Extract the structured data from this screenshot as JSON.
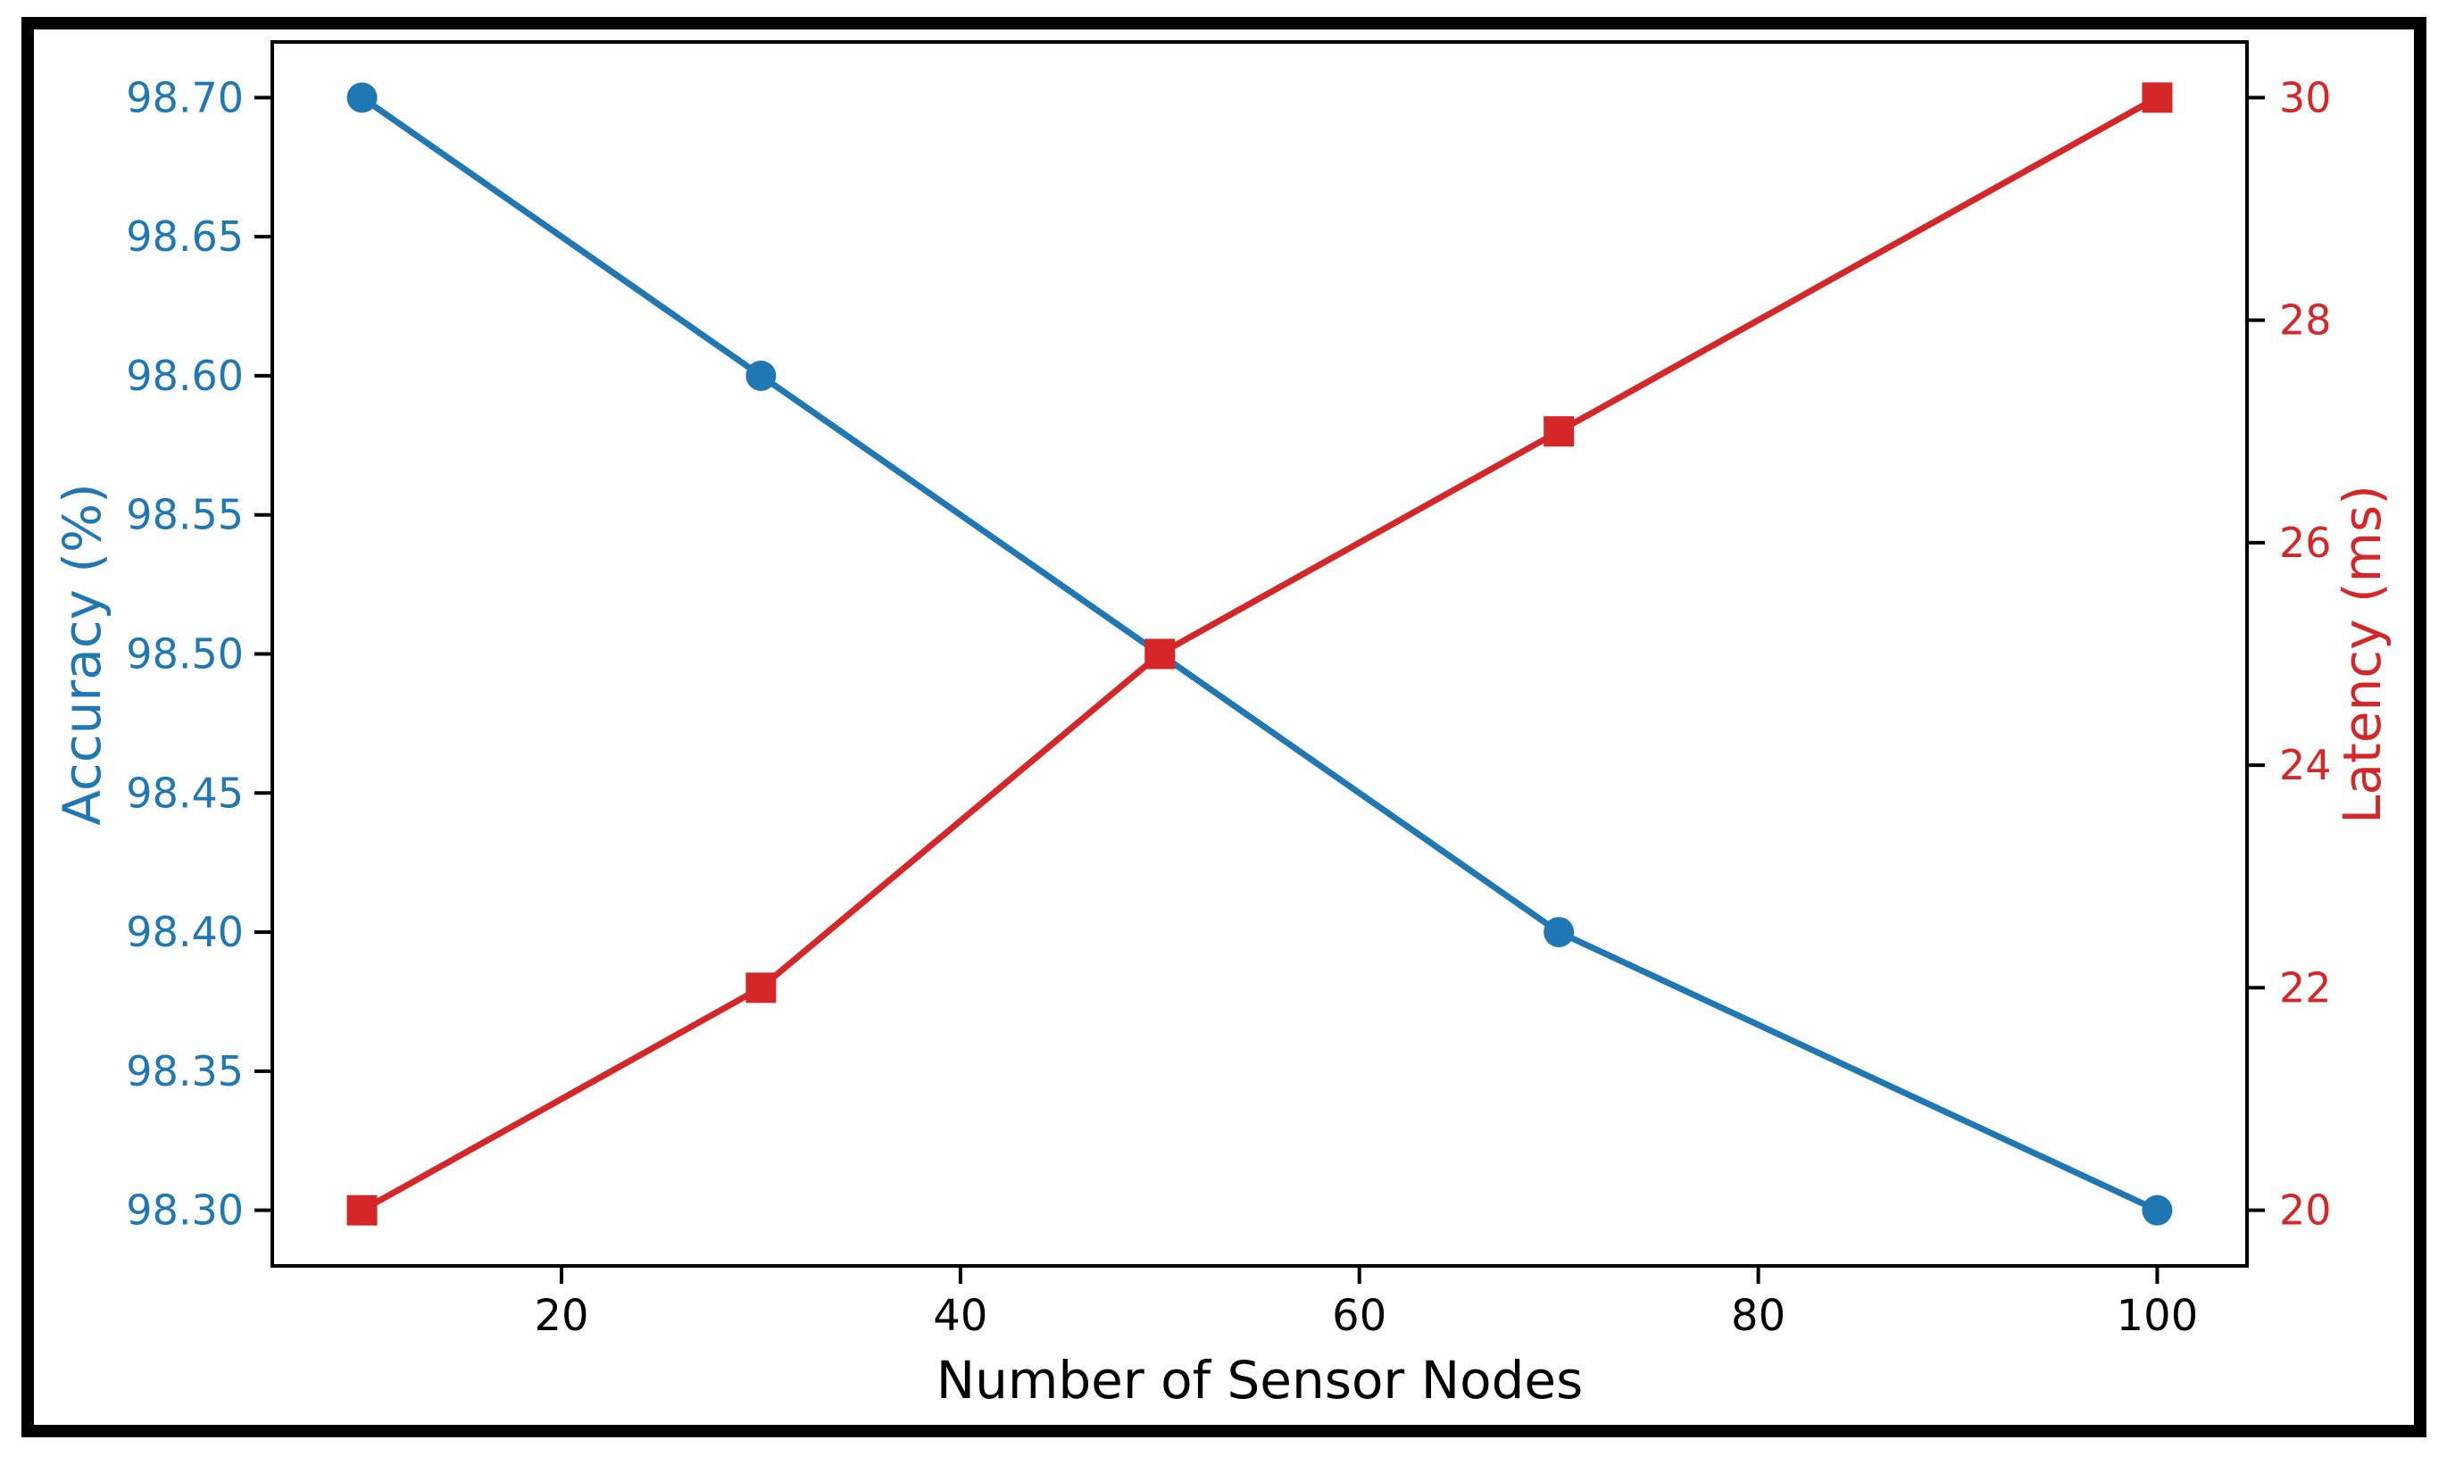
{
  "frame": {
    "border_color": "#000000",
    "background": "#ffffff"
  },
  "chart_data": {
    "type": "line",
    "title": "",
    "xlabel": "Number of Sensor Nodes",
    "ylabel_left": "Accuracy (%)",
    "ylabel_right": "Latency (ms)",
    "x": [
      10,
      30,
      50,
      70,
      100
    ],
    "series": [
      {
        "name": "Accuracy",
        "axis": "left",
        "marker": "circle",
        "color": "#1f77b4",
        "values": [
          98.7,
          98.6,
          98.5,
          98.4,
          98.3
        ]
      },
      {
        "name": "Latency",
        "axis": "right",
        "marker": "square",
        "color": "#d62728",
        "values": [
          20,
          22,
          25,
          27,
          30
        ]
      }
    ],
    "x_ticks": [
      "20",
      "40",
      "60",
      "80",
      "100"
    ],
    "y_left_ticks": [
      "98.70",
      "98.65",
      "98.60",
      "98.55",
      "98.50",
      "98.45",
      "98.40",
      "98.35",
      "98.30"
    ],
    "y_right_ticks": [
      "30",
      "28",
      "26",
      "24",
      "22",
      "20"
    ],
    "xlim": [
      5.5,
      104.5
    ],
    "ylim_left": [
      98.28,
      98.72
    ],
    "ylim_right": [
      19.5,
      30.5
    ],
    "grid": false,
    "legend": "none",
    "axis_colors": {
      "left": "#1f77b4",
      "right": "#d62728",
      "x": "#000000",
      "spine": "#000000"
    }
  }
}
